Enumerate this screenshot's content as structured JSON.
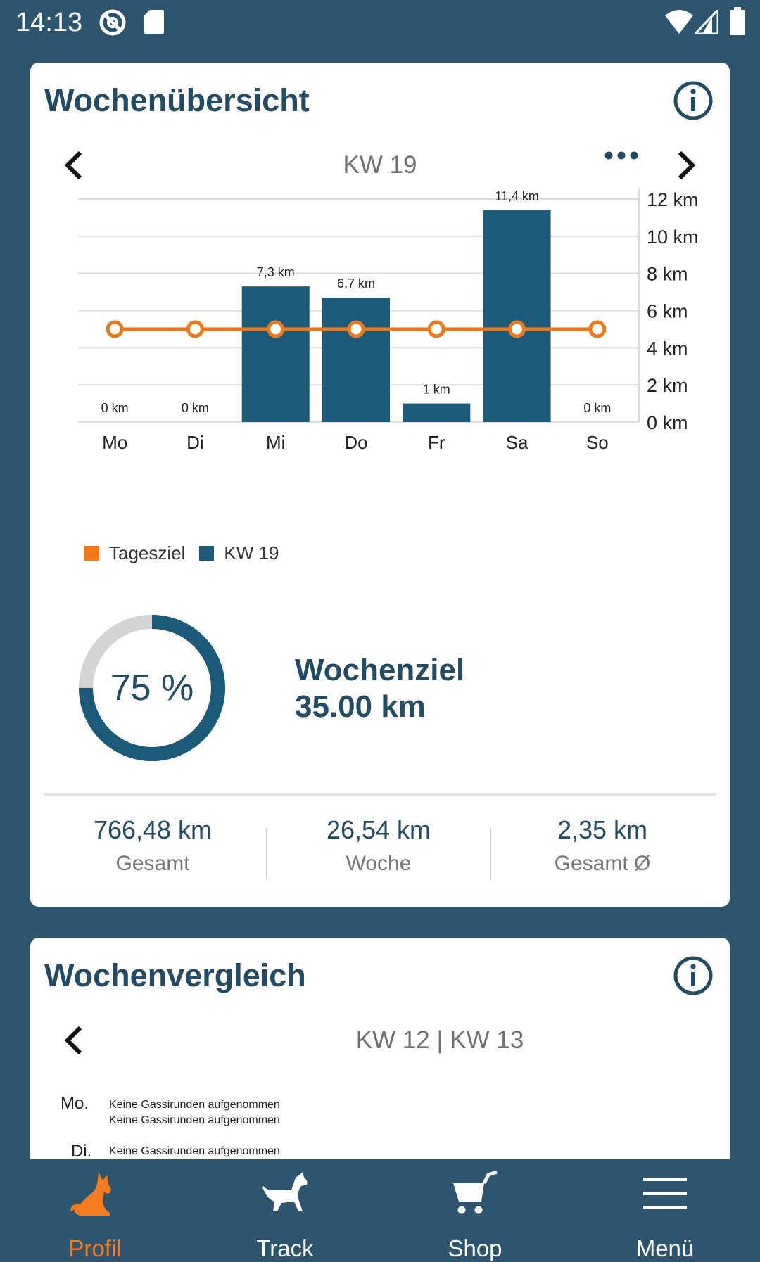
{
  "status_bar": {
    "time": "14:13"
  },
  "overview": {
    "title": "Wochenübersicht",
    "week_label": "KW 19",
    "legend": {
      "goal_label": "Tagesziel",
      "week_label": "KW 19"
    },
    "ring": {
      "percent_text": "75 %",
      "fraction": 0.75
    },
    "goal": {
      "line1": "Wochenziel",
      "line2": "35.00 km"
    },
    "stats": [
      {
        "value": "766,48 km",
        "label": "Gesamt"
      },
      {
        "value": "26,54 km",
        "label": "Woche"
      },
      {
        "value": "2,35 km",
        "label": "Gesamt Ø"
      }
    ]
  },
  "chart_data": {
    "type": "bar",
    "categories": [
      "Mo",
      "Di",
      "Mi",
      "Do",
      "Fr",
      "Sa",
      "So"
    ],
    "series": [
      {
        "name": "KW 19",
        "values": [
          0,
          0,
          7.3,
          6.7,
          1,
          11.4,
          0
        ],
        "color": "#1b5a78"
      },
      {
        "name": "Tagesziel",
        "type": "line",
        "values": [
          5,
          5,
          5,
          5,
          5,
          5,
          5
        ],
        "color": "#f07818"
      }
    ],
    "data_labels": [
      "0 km",
      "0 km",
      "7,3 km",
      "6,7 km",
      "1 km",
      "11,4 km",
      "0 km"
    ],
    "y_ticks": [
      0,
      2,
      4,
      6,
      8,
      10,
      12
    ],
    "y_tick_labels": [
      "0 km",
      "2 km",
      "4 km",
      "6 km",
      "8 km",
      "10 km",
      "12 km"
    ],
    "ylim": [
      0,
      12
    ],
    "grid": true,
    "legend_position": "bottom-left"
  },
  "comparison": {
    "title": "Wochenvergleich",
    "week_label": "KW 12 | KW 13",
    "rows": [
      {
        "day": "Mo.",
        "line1": "Keine Gassirunden aufgenommen",
        "line2": "Keine Gassirunden aufgenommen"
      },
      {
        "day": "Di.",
        "line1": "Keine Gassirunden aufgenommen"
      }
    ]
  },
  "bottom_nav": [
    {
      "label": "Profil",
      "icon": "fox-icon"
    },
    {
      "label": "Track",
      "icon": "dog-icon"
    },
    {
      "label": "Shop",
      "icon": "cart-icon"
    },
    {
      "label": "Menü",
      "icon": "hamburger-icon"
    }
  ],
  "colors": {
    "background": "#2e556d",
    "primary": "#234c64",
    "bar": "#1b5a78",
    "accent": "#f07818"
  }
}
